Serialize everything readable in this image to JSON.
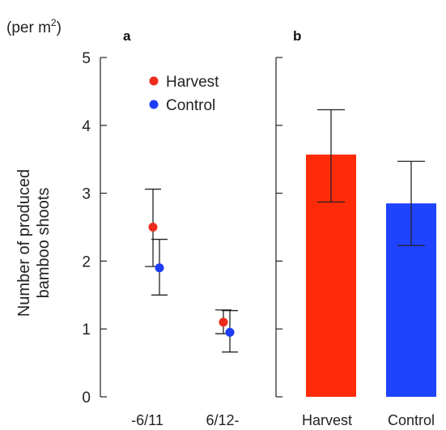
{
  "chart_data": [
    {
      "panel": "a",
      "type": "scatter",
      "unit_label": "(per m",
      "unit_sup": "2",
      "unit_close": ")",
      "ylabel_lines": [
        "Number of produced",
        "bamboo shoots"
      ],
      "ylim": [
        0,
        5
      ],
      "yticks": [
        0,
        1,
        2,
        3,
        4,
        5
      ],
      "categories": [
        "-6/11",
        "6/12-"
      ],
      "legend": "top-left",
      "series": [
        {
          "name": "Harvest",
          "color": "#ee2a1c",
          "values": [
            2.5,
            1.1
          ],
          "err_low": [
            1.92,
            0.93
          ],
          "err_high": [
            3.06,
            1.28
          ]
        },
        {
          "name": "Control",
          "color": "#1e3cf5",
          "values": [
            1.9,
            0.95
          ],
          "err_low": [
            1.5,
            0.66
          ],
          "err_high": [
            2.32,
            1.27
          ]
        }
      ]
    },
    {
      "panel": "b",
      "type": "bar",
      "ylim": [
        0,
        5
      ],
      "categories": [
        "Harvest",
        "Control"
      ],
      "values": [
        3.57,
        2.85
      ],
      "err_low": [
        2.87,
        2.23
      ],
      "err_high": [
        4.23,
        3.47
      ],
      "colors": [
        "#ff2a08",
        "#1f43ff"
      ]
    }
  ]
}
